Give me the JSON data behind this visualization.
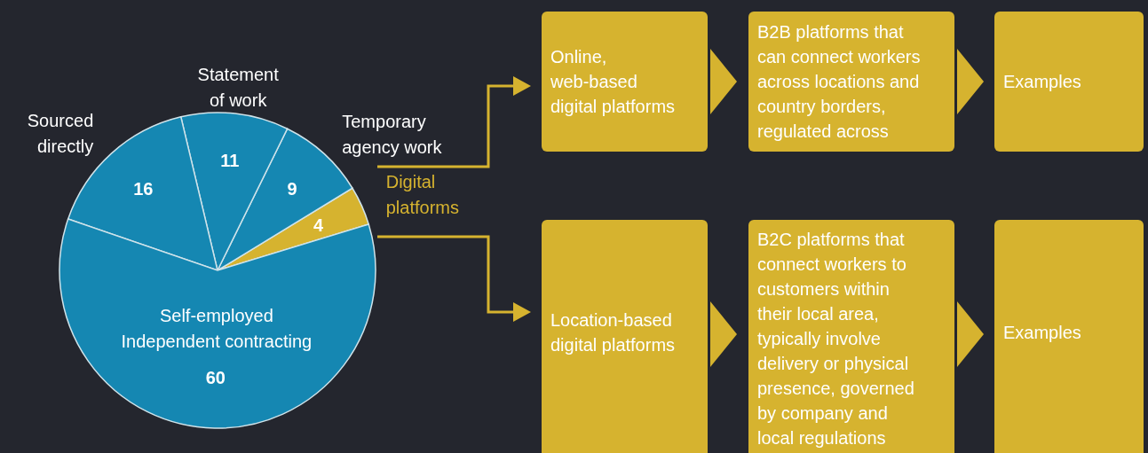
{
  "chart_data": [
    {
      "type": "pie",
      "categories": [
        "Digital\nplatforms",
        "Temporary\nagency work",
        "Statement\nof work",
        "Sourced\ndirectly",
        "Self-employed\nIndependent contracting"
      ],
      "values": [
        4,
        9,
        11,
        16,
        60
      ],
      "colors": [
        "#d6b32f",
        "#1587b2",
        "#1587b2",
        "#1587b2",
        "#1587b2"
      ],
      "data_labels": true
    },
    {
      "type": "other",
      "annotations": [
        "Online,\nweb-based\ndigital platforms",
        "B2B platforms that\ncan connect workers\nacross locations and\ncountry borders,\nregulated across",
        "Examples",
        "Location-based\ndigital platforms",
        "B2C platforms that\nconnect workers to\ncustomers within\ntheir local area,\ntypically involve\ndelivery or physical\npresence, governed\nby company and\nlocal regulations",
        "Examples"
      ]
    }
  ]
}
